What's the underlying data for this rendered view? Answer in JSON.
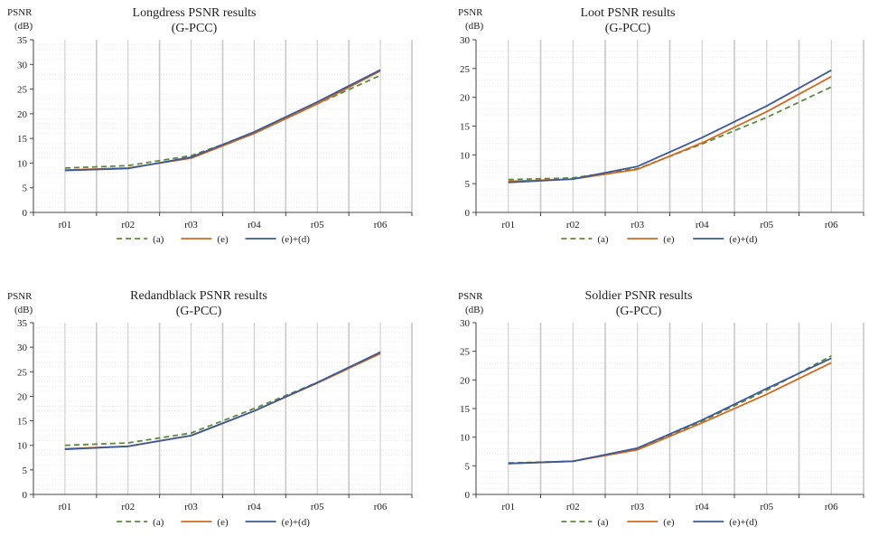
{
  "colors": {
    "a": "#5b8a3c",
    "e": "#d2691e",
    "ed": "#3b5998",
    "grid_major": "#c8c8c8",
    "grid_minor": "#e0e0e0",
    "axis": "#444444"
  },
  "chart_data": [
    {
      "type": "line",
      "title_line1": "Longdress PSNR results",
      "title_line2": "(G-PCC)",
      "ylabel_line1": "PSNR",
      "ylabel_line2": "(dB)",
      "xlabel": "",
      "categories": [
        "r01",
        "r02",
        "r03",
        "r04",
        "r05",
        "r06"
      ],
      "ylim": [
        0,
        35
      ],
      "yticks": [
        0,
        5,
        10,
        15,
        20,
        25,
        30,
        35
      ],
      "grid": "vertical",
      "legend_position": "bottom",
      "series": [
        {
          "name": "(a)",
          "style": "dashed",
          "color": "#5b8a3c",
          "values": [
            9.0,
            9.5,
            11.5,
            16.0,
            22.0,
            27.8
          ]
        },
        {
          "name": "(e)",
          "style": "solid",
          "color": "#d2691e",
          "values": [
            8.6,
            9.0,
            11.0,
            16.0,
            22.0,
            28.7
          ]
        },
        {
          "name": "(e)+(d)",
          "style": "solid",
          "color": "#3b5998",
          "values": [
            8.5,
            8.9,
            11.2,
            16.3,
            22.4,
            28.9
          ]
        }
      ]
    },
    {
      "type": "line",
      "title_line1": "Loot PSNR results",
      "title_line2": "(G-PCC)",
      "ylabel_line1": "PSNR",
      "ylabel_line2": "(dB)",
      "xlabel": "",
      "categories": [
        "r01",
        "r02",
        "r03",
        "r04",
        "r05",
        "r06"
      ],
      "ylim": [
        0,
        30
      ],
      "yticks": [
        0,
        5,
        10,
        15,
        20,
        25,
        30
      ],
      "grid": "vertical",
      "legend_position": "bottom",
      "series": [
        {
          "name": "(a)",
          "style": "dashed",
          "color": "#5b8a3c",
          "values": [
            5.7,
            6.0,
            7.6,
            11.9,
            16.5,
            21.8
          ]
        },
        {
          "name": "(e)",
          "style": "solid",
          "color": "#d2691e",
          "values": [
            5.4,
            5.8,
            7.5,
            12.1,
            17.5,
            23.6
          ]
        },
        {
          "name": "(e)+(d)",
          "style": "solid",
          "color": "#3b5998",
          "values": [
            5.2,
            5.8,
            8.0,
            13.0,
            18.5,
            24.7
          ]
        }
      ]
    },
    {
      "type": "line",
      "title_line1": "Redandblack PSNR results",
      "title_line2": "(G-PCC)",
      "ylabel_line1": "PSNR",
      "ylabel_line2": "(dB)",
      "xlabel": "",
      "categories": [
        "r01",
        "r02",
        "r03",
        "r04",
        "r05",
        "r06"
      ],
      "ylim": [
        0,
        35
      ],
      "yticks": [
        0,
        5,
        10,
        15,
        20,
        25,
        30,
        35
      ],
      "grid": "vertical",
      "legend_position": "bottom",
      "series": [
        {
          "name": "(a)",
          "style": "dashed",
          "color": "#5b8a3c",
          "values": [
            10.0,
            10.5,
            12.5,
            17.5,
            22.8,
            28.8
          ]
        },
        {
          "name": "(e)",
          "style": "solid",
          "color": "#d2691e",
          "values": [
            9.3,
            9.8,
            12.0,
            17.0,
            22.7,
            28.7
          ]
        },
        {
          "name": "(e)+(d)",
          "style": "solid",
          "color": "#3b5998",
          "values": [
            9.2,
            9.8,
            12.0,
            17.0,
            22.8,
            29.0
          ]
        }
      ]
    },
    {
      "type": "line",
      "title_line1": "Soldier PSNR results",
      "title_line2": "(G-PCC)",
      "ylabel_line1": "PSNR",
      "ylabel_line2": "(dB)",
      "xlabel": "",
      "categories": [
        "r01",
        "r02",
        "r03",
        "r04",
        "r05",
        "r06"
      ],
      "ylim": [
        0,
        30
      ],
      "yticks": [
        0,
        5,
        10,
        15,
        20,
        25,
        30
      ],
      "grid": "vertical",
      "legend_position": "bottom",
      "series": [
        {
          "name": "(a)",
          "style": "dashed",
          "color": "#5b8a3c",
          "values": [
            5.5,
            5.8,
            8.0,
            12.8,
            18.2,
            24.2
          ]
        },
        {
          "name": "(e)",
          "style": "solid",
          "color": "#d2691e",
          "values": [
            5.4,
            5.8,
            7.8,
            12.5,
            17.5,
            23.0
          ]
        },
        {
          "name": "(e)+(d)",
          "style": "solid",
          "color": "#3b5998",
          "values": [
            5.4,
            5.8,
            8.1,
            13.0,
            18.5,
            23.8
          ]
        }
      ]
    }
  ]
}
